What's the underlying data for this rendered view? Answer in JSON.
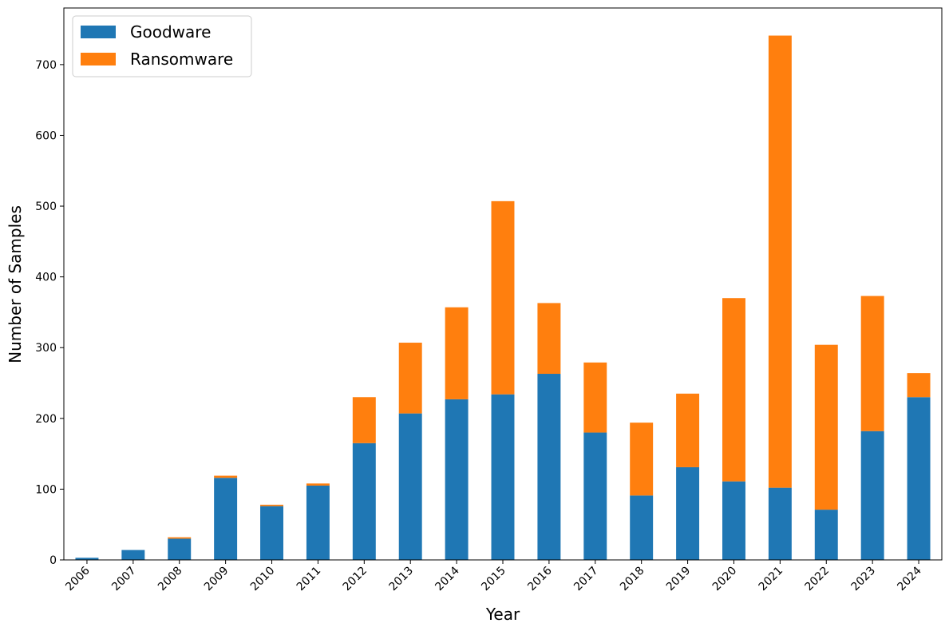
{
  "chart_data": {
    "type": "bar",
    "stacked": true,
    "categories": [
      "2006",
      "2007",
      "2008",
      "2009",
      "2010",
      "2011",
      "2012",
      "2013",
      "2014",
      "2015",
      "2016",
      "2017",
      "2018",
      "2019",
      "2020",
      "2021",
      "2022",
      "2023",
      "2024"
    ],
    "series": [
      {
        "name": "Goodware",
        "color": "#1f77b4",
        "values": [
          3,
          14,
          30,
          116,
          76,
          105,
          165,
          207,
          227,
          234,
          263,
          180,
          91,
          131,
          111,
          102,
          71,
          182,
          230
        ]
      },
      {
        "name": "Ransomware",
        "color": "#ff7f0e",
        "values": [
          0,
          0,
          2,
          3,
          2,
          3,
          65,
          100,
          130,
          273,
          100,
          99,
          103,
          104,
          259,
          639,
          233,
          191,
          34
        ]
      }
    ],
    "xlabel": "Year",
    "ylabel": "Number of Samples",
    "ylim": [
      0,
      780
    ],
    "yticks": [
      0,
      100,
      200,
      300,
      400,
      500,
      600,
      700
    ],
    "legend_position": "top-left",
    "grid": false
  }
}
